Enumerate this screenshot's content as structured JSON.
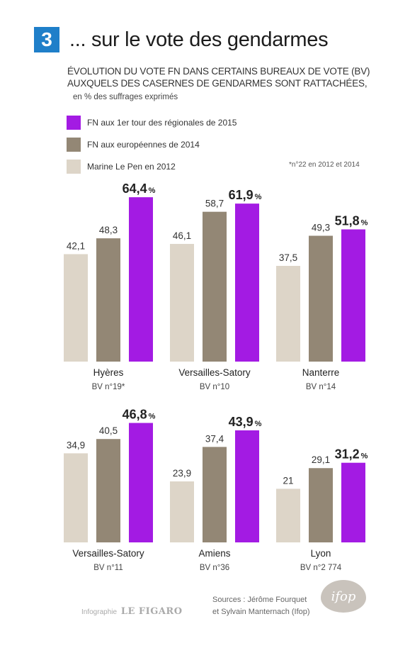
{
  "header": {
    "number": "3",
    "title": "... sur le vote des gendarmes"
  },
  "subtitle_line1": "ÉVOLUTION DU VOTE FN DANS CERTAINS BUREAUX DE VOTE (BV)",
  "subtitle_line2": "AUXQUELS DES CASERNES DE GENDARMES SONT RATTACHÉES,",
  "unit": "en % des suffrages exprimés",
  "note": "*n°22 en 2012 et 2014",
  "colors": {
    "regionales": "#a31be3",
    "europeennes": "#938775",
    "lepen": "#ddd5c8"
  },
  "chart_data": {
    "type": "bar",
    "series": [
      {
        "name": "Marine Le Pen en 2012"
      },
      {
        "name": "FN aux européennes de 2014"
      },
      {
        "name": "FN aux 1er tour des régionales de 2015"
      }
    ],
    "groups": [
      {
        "name": "Hyères",
        "bv": "BV n°19*",
        "values": [
          42.1,
          48.3,
          64.4
        ],
        "labels": [
          "42,1",
          "48,3",
          "64,4"
        ]
      },
      {
        "name": "Versailles-Satory",
        "bv": "BV n°10",
        "values": [
          46.1,
          58.7,
          61.9
        ],
        "labels": [
          "46,1",
          "58,7",
          "61,9"
        ]
      },
      {
        "name": "Nanterre",
        "bv": "BV n°14",
        "values": [
          37.5,
          49.3,
          51.8
        ],
        "labels": [
          "37,5",
          "49,3",
          "51,8"
        ]
      },
      {
        "name": "Versailles-Satory",
        "bv": "BV n°11",
        "values": [
          34.9,
          40.5,
          46.8
        ],
        "labels": [
          "34,9",
          "40,5",
          "46,8"
        ]
      },
      {
        "name": "Amiens",
        "bv": "BV n°36",
        "values": [
          23.9,
          37.4,
          43.9
        ],
        "labels": [
          "23,9",
          "37,4",
          "43,9"
        ]
      },
      {
        "name": "Lyon",
        "bv": "BV n°2 774",
        "values": [
          21,
          29.1,
          31.2
        ],
        "labels": [
          "21",
          "29,1",
          "31,2"
        ]
      }
    ],
    "percent_sign": "%"
  },
  "footer": {
    "sources_line1": "Sources : Jérôme Fourquet",
    "sources_line2": "et Sylvain Manternach (Ifop)",
    "infographie": "Infographie",
    "brand": "LE FIGARO",
    "logo": "ifop"
  }
}
